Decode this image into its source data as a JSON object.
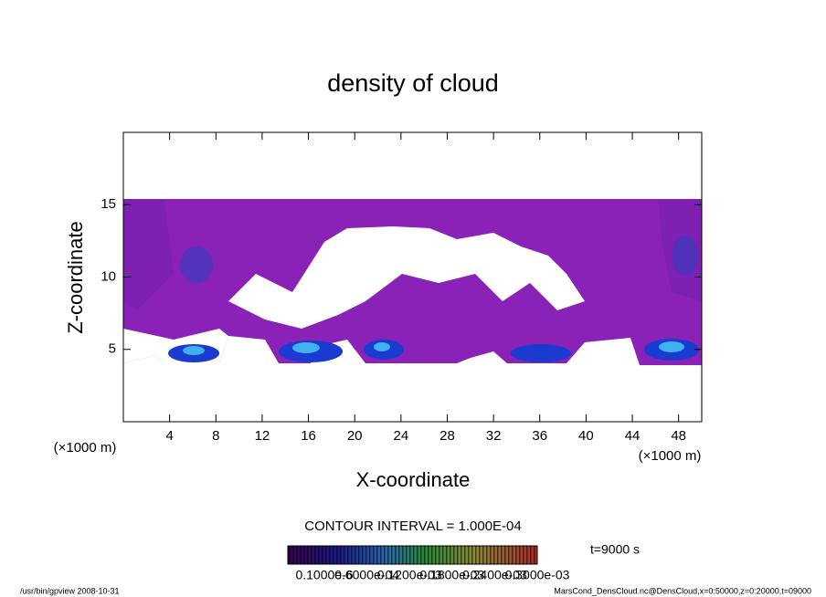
{
  "chart_data": {
    "type": "contour",
    "title": "density of cloud",
    "x_label": "X-coordinate",
    "y_label": "Z-coordinate",
    "x_unit": "(×1000 m)",
    "xlim": [
      0,
      50
    ],
    "xticks": [
      4,
      8,
      12,
      16,
      20,
      24,
      28,
      32,
      36,
      40,
      44,
      48
    ],
    "ylim": [
      0,
      20
    ],
    "yticks": [
      5,
      10,
      15
    ],
    "contour_interval": "CONTOUR INTERVAL = 1.000E-04",
    "time_label": "t=9000 s",
    "colorbar_labels": [
      "0.1000e-6",
      "0.6000e-04",
      "0.1200e-03",
      "0.1800e-03",
      "0.2400e-03",
      "0.3000e-03"
    ],
    "footer_left": "/usr/bin/gpview   2008-10-31",
    "footer_right": "MarsCond_DensCloud.nc@DensCloud,x=0:50000,z=0:20000,t=09000"
  }
}
